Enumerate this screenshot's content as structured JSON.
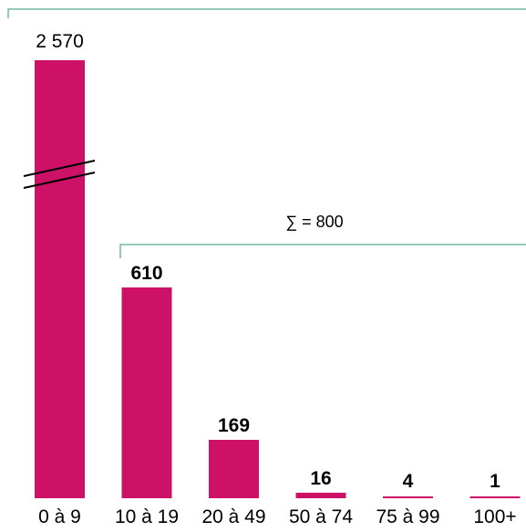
{
  "chart_data": {
    "type": "bar",
    "categories": [
      "0 à 9",
      "10 à 19",
      "20 à 49",
      "50 à 74",
      "75 à 99",
      "100+"
    ],
    "values": [
      2570,
      610,
      169,
      16,
      4,
      1
    ],
    "value_labels": [
      "2 570",
      "610",
      "169",
      "16",
      "4",
      "1"
    ],
    "axis_break": "first bar truncated",
    "grid": false,
    "annotation": {
      "text": "∑ = 800",
      "covers_categories": [
        "10 à 19",
        "20 à 49",
        "50 à 74",
        "75 à 99",
        "100+"
      ]
    }
  },
  "colors": {
    "bar": "#CC1166",
    "bracket": "#6FB9A6",
    "text": "#000000"
  }
}
